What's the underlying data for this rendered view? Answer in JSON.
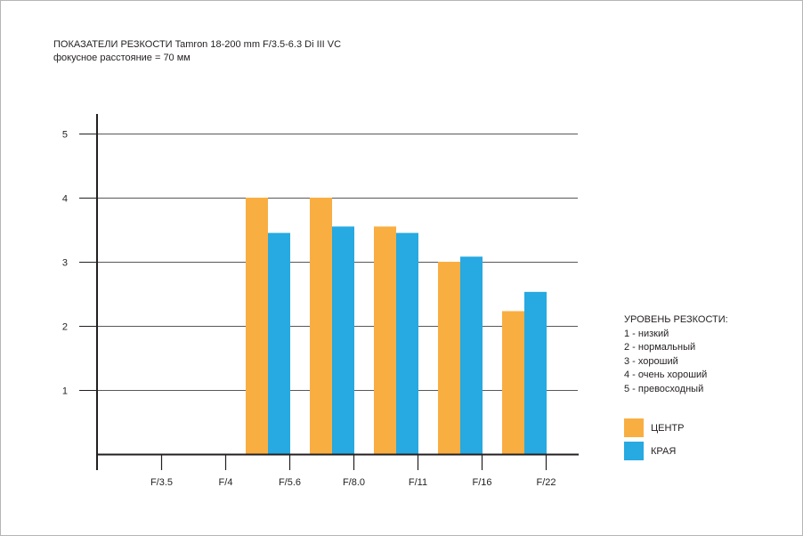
{
  "chart_data": {
    "type": "bar",
    "title": "ПОКАЗАТЕЛИ РЕЗКОСТИ Tamron 18-200 mm F/3.5-6.3 Di III VC",
    "subtitle": "фокусное расстояние = 70 мм",
    "categories": [
      "F/3.5",
      "F/4",
      "F/5.6",
      "F/8.0",
      "F/11",
      "F/16",
      "F/22"
    ],
    "series": [
      {
        "name": "ЦЕНТР",
        "color": "#f9ae42",
        "values": [
          null,
          null,
          4.0,
          4.0,
          3.55,
          3.0,
          2.23
        ]
      },
      {
        "name": "КРАЯ",
        "color": "#27a9e1",
        "values": [
          null,
          null,
          3.45,
          3.55,
          3.45,
          3.08,
          2.53
        ]
      }
    ],
    "yticks": [
      "1",
      "2",
      "3",
      "4",
      "5"
    ],
    "ylim": [
      0,
      5
    ],
    "grid": true,
    "legend_position": "right"
  },
  "scale": {
    "heading": "УРОВЕНЬ РЕЗКОСТИ:",
    "levels": [
      "1 - низкий",
      "2 - нормальный",
      "3 - хороший",
      "4 - очень хороший",
      "5 - превосходный"
    ]
  }
}
